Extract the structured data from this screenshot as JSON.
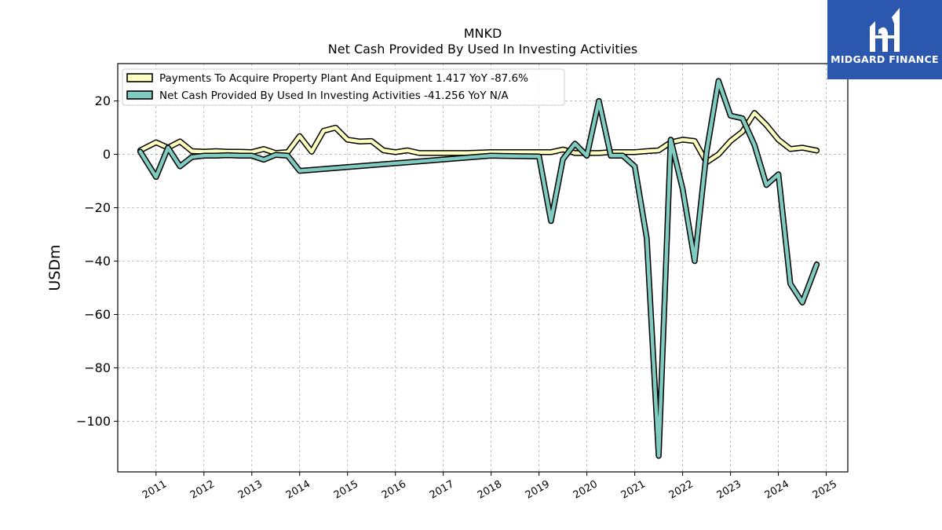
{
  "logo": {
    "text": "MIDGARD FINANCE",
    "background": "#2b57ae"
  },
  "chart_data": {
    "type": "line",
    "title": "MNKD",
    "subtitle": "Net Cash Provided By Used In Investing Activities",
    "xlabel": "",
    "ylabel": "USDm",
    "xlim": [
      2010.2,
      2025.45
    ],
    "ylim": [
      -119,
      34
    ],
    "yticks": [
      20,
      0,
      -20,
      -40,
      -60,
      -80,
      -100
    ],
    "ytick_labels": [
      "20",
      "0",
      "−20",
      "−40",
      "−60",
      "−80",
      "−100"
    ],
    "xticks": [
      2011,
      2012,
      2013,
      2014,
      2015,
      2016,
      2017,
      2018,
      2019,
      2020,
      2021,
      2022,
      2023,
      2024,
      2025
    ],
    "xtick_labels": [
      "2011",
      "2012",
      "2013",
      "2014",
      "2015",
      "2016",
      "2017",
      "2018",
      "2019",
      "2020",
      "2021",
      "2022",
      "2023",
      "2024",
      "2025"
    ],
    "grid": true,
    "legend_position": "top-left",
    "series": [
      {
        "name": "Payments To Acquire Property Plant And Equipment",
        "legend_label": "Payments To Acquire Property Plant And Equipment  1.417 YoY -87.6%",
        "color": "#ffffbf",
        "x": [
          2010.67,
          2011.0,
          2011.25,
          2011.5,
          2011.75,
          2012.0,
          2012.25,
          2012.5,
          2012.75,
          2013.0,
          2013.25,
          2013.5,
          2013.75,
          2014.0,
          2014.25,
          2014.5,
          2014.75,
          2015.0,
          2015.25,
          2015.5,
          2015.75,
          2016.0,
          2016.25,
          2016.5,
          2016.75,
          2017.0,
          2017.5,
          2018.0,
          2018.5,
          2019.0,
          2019.25,
          2019.5,
          2019.75,
          2020.0,
          2020.25,
          2020.5,
          2020.75,
          2021.0,
          2021.25,
          2021.5,
          2021.75,
          2022.0,
          2022.25,
          2022.5,
          2022.75,
          2023.0,
          2023.25,
          2023.5,
          2023.75,
          2024.0,
          2024.25,
          2024.5,
          2024.8
        ],
        "values": [
          1.5,
          4.5,
          2.5,
          4.8,
          1.2,
          1.0,
          1.2,
          1.0,
          1.0,
          0.8,
          2.0,
          0.5,
          0.8,
          6.8,
          1.0,
          8.8,
          10.0,
          5.5,
          4.8,
          5.0,
          1.5,
          0.8,
          1.5,
          0.5,
          0.5,
          0.5,
          0.5,
          0.8,
          0.8,
          0.8,
          0.8,
          1.8,
          0.5,
          0.5,
          0.5,
          0.8,
          0.8,
          0.8,
          1.2,
          1.5,
          4.5,
          5.5,
          5.0,
          -3.0,
          0.0,
          5.0,
          8.5,
          15.5,
          11.0,
          5.5,
          2.0,
          2.5,
          1.417
        ]
      },
      {
        "name": "Net Cash Provided By Used In Investing Activities",
        "legend_label": "Net Cash Provided By Used In Investing Activities  -41.256 YoY N/A",
        "color": "#80cbc0",
        "x": [
          2010.67,
          2011.0,
          2011.25,
          2011.5,
          2011.75,
          2012.0,
          2012.25,
          2012.5,
          2012.75,
          2013.0,
          2013.25,
          2013.5,
          2013.75,
          2014.0,
          2018.0,
          2019.0,
          2019.25,
          2019.5,
          2019.75,
          2020.0,
          2020.25,
          2020.5,
          2020.75,
          2021.0,
          2021.25,
          2021.5,
          2021.75,
          2022.0,
          2022.25,
          2022.5,
          2022.75,
          2023.0,
          2023.25,
          2023.5,
          2023.75,
          2024.0,
          2024.25,
          2024.5,
          2024.8
        ],
        "values": [
          1.0,
          -8.5,
          2.5,
          -4.5,
          -1.0,
          -0.5,
          -0.5,
          -0.3,
          -0.5,
          -0.5,
          -2.0,
          -0.2,
          -0.5,
          -6.2,
          -0.5,
          -0.8,
          -25.0,
          -1.8,
          4.0,
          -0.5,
          20.0,
          -0.5,
          -0.5,
          -4.5,
          -31.5,
          -113.0,
          5.5,
          -13.0,
          -40.0,
          1.0,
          27.5,
          14.5,
          13.5,
          3.5,
          -11.5,
          -7.5,
          -48.5,
          -55.5,
          -41.256
        ]
      }
    ]
  }
}
